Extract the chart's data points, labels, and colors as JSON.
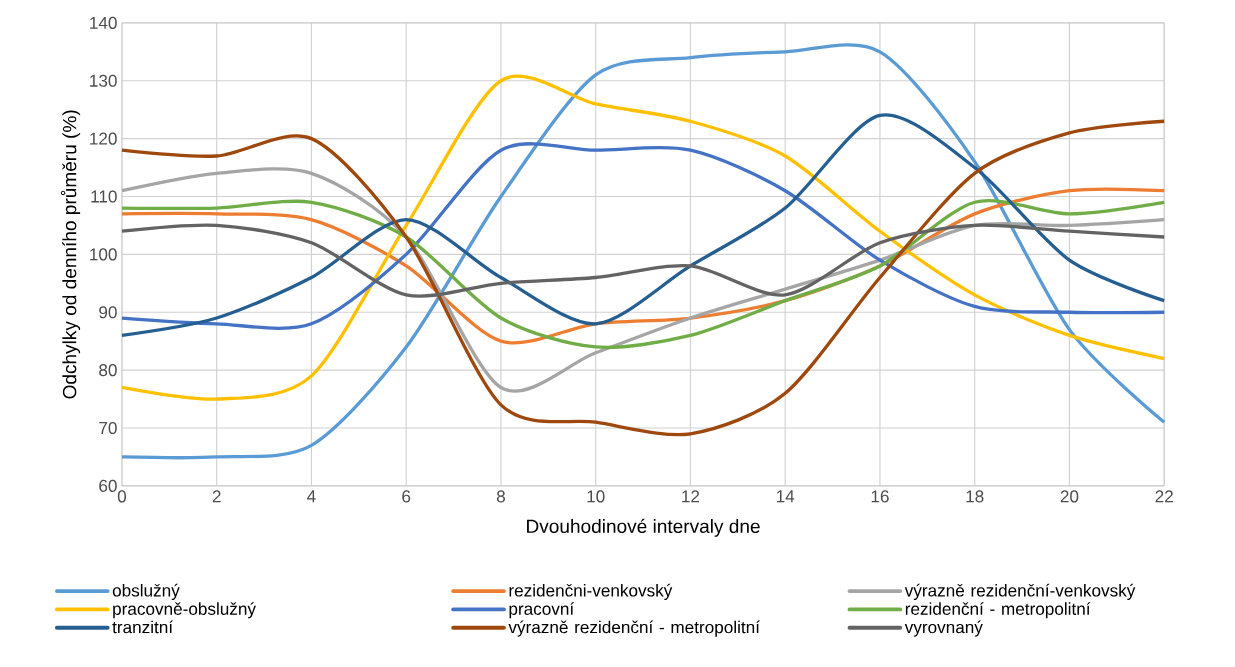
{
  "chart_data": {
    "type": "line",
    "xlabel": "Dvouhodinové intervaly dne",
    "ylabel": "Odchylky od denního průměru (%)",
    "x": [
      0,
      2,
      4,
      6,
      8,
      10,
      12,
      14,
      16,
      18,
      20,
      22
    ],
    "xlim": [
      0,
      22
    ],
    "xticks": [
      0,
      2,
      4,
      6,
      8,
      10,
      12,
      14,
      16,
      18,
      20,
      22
    ],
    "ylim": [
      60,
      140
    ],
    "yticks": [
      60,
      70,
      80,
      90,
      100,
      110,
      120,
      130,
      140
    ],
    "grid": true,
    "legend": "bottom",
    "marker": "none",
    "line_style": "solid",
    "series": [
      {
        "name": "obslužný",
        "color": "#5b9bd5",
        "values": [
          65,
          65,
          67,
          84,
          110,
          131,
          134,
          135,
          135,
          116,
          87,
          71
        ]
      },
      {
        "name": "rezidenčni-venkovský",
        "color": "#ed7d31",
        "values": [
          107,
          107,
          106,
          98,
          85,
          88,
          89,
          92,
          98,
          107,
          111,
          111
        ]
      },
      {
        "name": "výrazně rezidenční-venkovský",
        "color": "#a5a5a5",
        "values": [
          111,
          114,
          114,
          103,
          77,
          83,
          89,
          94,
          99,
          105,
          105,
          106
        ]
      },
      {
        "name": "pracovně-obslužný",
        "color": "#ffc000",
        "values": [
          77,
          75,
          79,
          105,
          130,
          126,
          123,
          117,
          104,
          93,
          86,
          82
        ]
      },
      {
        "name": "pracovní",
        "color": "#4472c4",
        "values": [
          89,
          88,
          88,
          100,
          118,
          118,
          118,
          111,
          99,
          91,
          90,
          90
        ]
      },
      {
        "name": "rezidenční - metropolitní",
        "color": "#70ad47",
        "values": [
          108,
          108,
          109,
          103,
          89,
          84,
          86,
          92,
          98,
          109,
          107,
          109
        ]
      },
      {
        "name": "tranzitní",
        "color": "#255e91",
        "values": [
          86,
          89,
          96,
          106,
          96,
          88,
          98,
          108,
          124,
          115,
          99,
          92
        ]
      },
      {
        "name": "výrazně rezidenční - metropolitní",
        "color": "#9e480e",
        "values": [
          118,
          117,
          120,
          103,
          74,
          71,
          69,
          76,
          96,
          114,
          121,
          123
        ]
      },
      {
        "name": "vyrovnaný",
        "color": "#636363",
        "values": [
          104,
          105,
          102,
          93,
          95,
          96,
          98,
          93,
          102,
          105,
          104,
          103
        ]
      }
    ]
  }
}
